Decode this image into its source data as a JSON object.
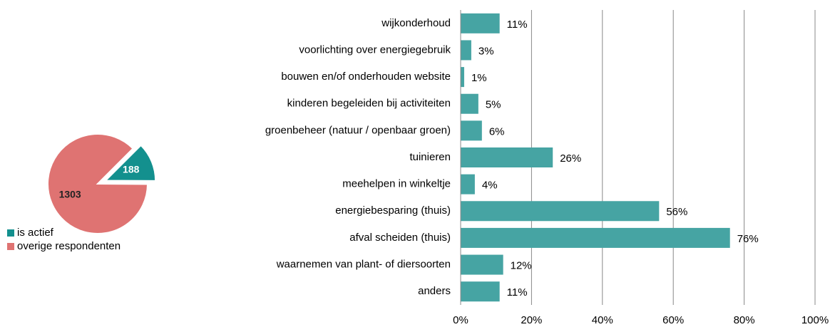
{
  "chart_data": [
    {
      "type": "pie",
      "labels": [
        "is actief",
        "overige respondenten"
      ],
      "values": [
        188,
        1303
      ],
      "colors": [
        "#13908e",
        "#df7372"
      ],
      "explode": [
        true,
        false
      ]
    },
    {
      "type": "barh",
      "categories": [
        "wijkonderhoud",
        "voorlichting over energiegebruik",
        "bouwen en/of onderhouden website",
        "kinderen begeleiden bij activiteiten",
        "groenbeheer (natuur / openbaar groen)",
        "tuinieren",
        "meehelpen in winkeltje",
        "energiebesparing (thuis)",
        "afval scheiden (thuis)",
        "waarnemen van plant- of diersoorten",
        "anders"
      ],
      "values": [
        11,
        3,
        1,
        5,
        6,
        26,
        4,
        56,
        76,
        12,
        11
      ],
      "value_labels": [
        "11%",
        "3%",
        "1%",
        "5%",
        "6%",
        "26%",
        "4%",
        "56%",
        "76%",
        "12%",
        "11%"
      ],
      "color": "#46a4a3",
      "xlim": [
        0,
        100
      ],
      "xticks": [
        {
          "value": 0,
          "label": "0%"
        },
        {
          "value": 20,
          "label": "20%"
        },
        {
          "value": 40,
          "label": "40%"
        },
        {
          "value": 60,
          "label": "60%"
        },
        {
          "value": 80,
          "label": "80%"
        },
        {
          "value": 100,
          "label": "100%"
        }
      ],
      "grid": true
    }
  ]
}
